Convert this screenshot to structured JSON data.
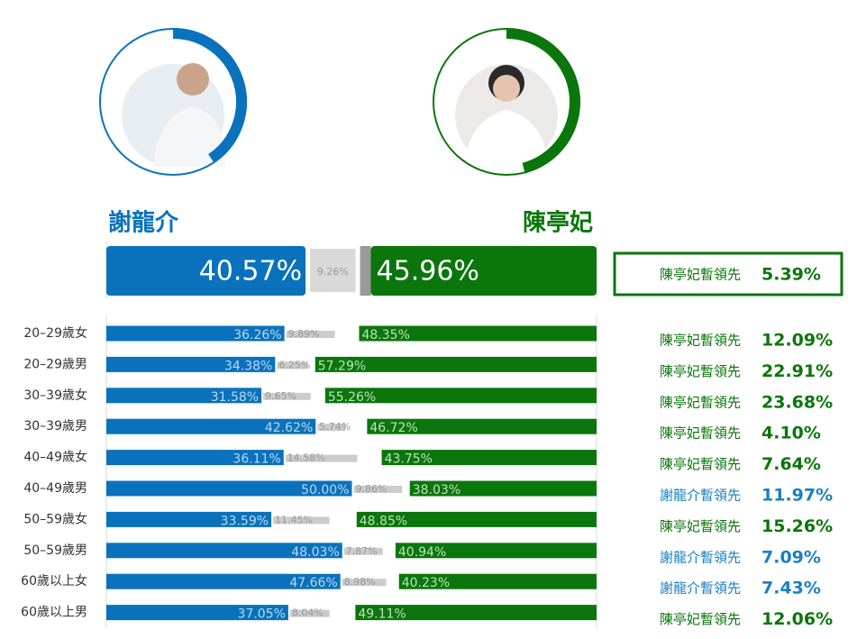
{
  "chart_data": {
    "type": "bar",
    "categories": [
      "20–29歲女",
      "20–29歲男",
      "30–39歲女",
      "30–39歲男",
      "40–49歲女",
      "40–49歲男",
      "50–59歲女",
      "50–59歲男",
      "60歲以上女",
      "60歲以上男"
    ],
    "series": [
      {
        "name": "謝龍介",
        "color": "#0a72bc",
        "values": [
          36.26,
          34.38,
          31.58,
          42.62,
          36.11,
          50.0,
          33.59,
          48.03,
          47.66,
          37.05
        ],
        "value_labels": [
          "36.26%",
          "34.38%",
          "31.58%",
          "42.62%",
          "36.11%",
          "50.00%",
          "33.59%",
          "48.03%",
          "47.66%",
          "37.05%"
        ]
      },
      {
        "color": "#cccccc",
        "values": [
          9.89,
          6.25,
          9.65,
          5.74,
          14.58,
          9.86,
          11.45,
          7.87,
          8.98,
          8.04
        ],
        "value_labels": [
          "9.89%",
          "6.25%",
          "9.65%",
          "5.74%",
          "14.58%",
          "9.86%",
          "11.45%",
          "7.87%",
          "8.98%",
          "8.04%"
        ]
      },
      {
        "name": "陳亭妃",
        "color": "#0b760b",
        "values": [
          48.35,
          57.29,
          55.26,
          46.72,
          43.75,
          38.03,
          48.85,
          40.94,
          40.23,
          49.11
        ],
        "value_labels": [
          "48.35%",
          "57.29%",
          "55.26%",
          "46.72%",
          "43.75%",
          "38.03%",
          "48.85%",
          "40.94%",
          "40.23%",
          "49.11%"
        ]
      }
    ],
    "overall": {
      "values": [
        40.57,
        9.26,
        45.96
      ],
      "value_labels": [
        "40.57%",
        "9.26%",
        "45.96%"
      ],
      "lead_text": "陳亭妃暫領先",
      "lead_value": 5.39,
      "lead_label": "5.39%",
      "lead_color": "#0b760b"
    },
    "leads": [
      {
        "text": "陳亭妃暫領先",
        "value": 12.09,
        "label": "12.09%",
        "color": "#0b760b"
      },
      {
        "text": "陳亭妃暫領先",
        "value": 22.91,
        "label": "22.91%",
        "color": "#0b760b"
      },
      {
        "text": "陳亭妃暫領先",
        "value": 23.68,
        "label": "23.68%",
        "color": "#0b760b"
      },
      {
        "text": "陳亭妃暫領先",
        "value": 4.1,
        "label": "4.10%",
        "color": "#0b760b"
      },
      {
        "text": "陳亭妃暫領先",
        "value": 7.64,
        "label": "7.64%",
        "color": "#0b760b"
      },
      {
        "text": "謝龍介暫領先",
        "value": 11.97,
        "label": "11.97%",
        "color": "#1a80c0"
      },
      {
        "text": "陳亭妃暫領先",
        "value": 15.26,
        "label": "15.26%",
        "color": "#0b760b"
      },
      {
        "text": "謝龍介暫領先",
        "value": 7.09,
        "label": "7.09%",
        "color": "#1a80c0"
      },
      {
        "text": "謝龍介暫領先",
        "value": 7.43,
        "label": "7.43%",
        "color": "#1a80c0"
      },
      {
        "text": "陳亭妃暫領先",
        "value": 12.06,
        "label": "12.06%",
        "color": "#0b760b"
      }
    ]
  }
}
